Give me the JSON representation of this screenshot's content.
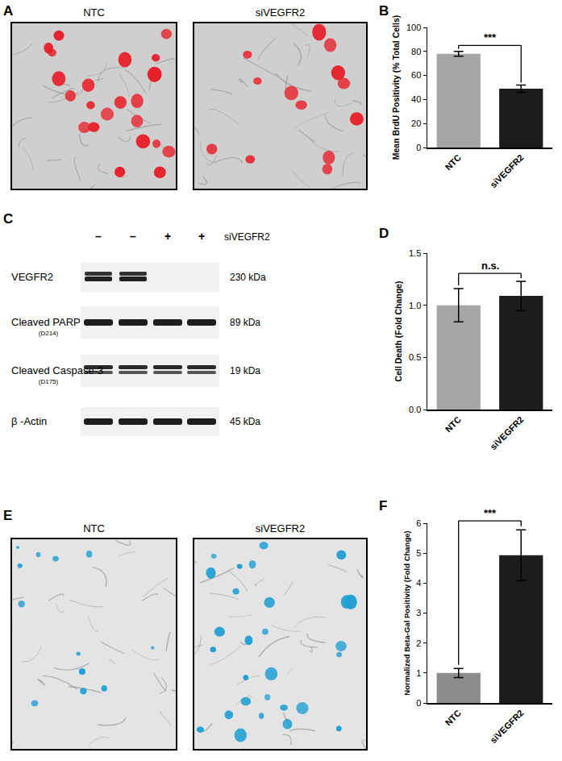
{
  "panel_labels": [
    "A",
    "B",
    "C",
    "D",
    "E",
    "F"
  ],
  "microscopy": [
    {
      "images": [
        {
          "label": "NTC"
        },
        {
          "label": "siVEGFR2"
        }
      ],
      "color": "#e8202a"
    },
    {
      "images": [
        {
          "label": "NTC"
        },
        {
          "label": "siVEGFR2"
        }
      ],
      "color": "#1f9fd4"
    }
  ],
  "blot": {
    "treatment": "siVEGFR2",
    "lanes": [
      "–",
      "–",
      "+",
      "+"
    ],
    "rows": [
      {
        "label": "VEGFR2",
        "size": "230 kDa",
        "bands": [
          true,
          true,
          false,
          false
        ]
      },
      {
        "label": "Cleaved PARP",
        "sublabel": "(D214)",
        "size": "89 kDa",
        "bands": [
          true,
          true,
          true,
          true
        ]
      },
      {
        "label": "Cleaved Caspase-3",
        "sublabel": "(D175)",
        "size": "19 kDa",
        "bands": [
          true,
          true,
          true,
          true
        ]
      },
      {
        "label": "β -Actin",
        "size": "45 kDa",
        "bands": [
          true,
          true,
          true,
          true
        ]
      }
    ]
  },
  "chart_data": [
    {
      "type": "bar",
      "y_label": "Mean BrdU Positivity (% Total Cells)",
      "categories": [
        "NTC",
        "siVEGFR2"
      ],
      "values": [
        78,
        49
      ],
      "errors": [
        2,
        3
      ],
      "colors": [
        "#a6a6a6",
        "#1c1c1c"
      ],
      "ylim": [
        0,
        100
      ],
      "yticks": [
        0,
        20,
        40,
        60,
        80,
        100
      ],
      "grid": false,
      "annotations": [
        {
          "text": "***"
        }
      ]
    },
    {
      "type": "bar",
      "y_label": "Cell Death (Fold Change)",
      "categories": [
        "NTC",
        "siVEGFR2"
      ],
      "values": [
        1.0,
        1.09
      ],
      "errors": [
        0.16,
        0.14
      ],
      "colors": [
        "#a6a6a6",
        "#1c1c1c"
      ],
      "ylim": [
        0,
        1.5
      ],
      "yticks": [
        {
          "value": 0,
          "label": "0.0"
        },
        {
          "value": 0.5,
          "label": "0.5"
        },
        {
          "value": 1,
          "label": "1.0"
        },
        {
          "value": 1.5,
          "label": "1.5"
        }
      ],
      "grid": false,
      "annotations": [
        {
          "text": "n.s."
        }
      ]
    },
    {
      "type": "bar",
      "y_label": "Normalized Beta-Gal Positivity (Fold Change)",
      "categories": [
        "NTC",
        "siVEGFR2"
      ],
      "values": [
        1.0,
        4.93
      ],
      "errors": [
        0.15,
        0.85
      ],
      "colors": [
        "#8c8c8c",
        "#1c1c1c"
      ],
      "ylim": [
        0,
        6
      ],
      "yticks": [
        0,
        1,
        2,
        3,
        4,
        5,
        6
      ],
      "grid": false,
      "annotations": [
        {
          "text": "***"
        }
      ]
    }
  ]
}
